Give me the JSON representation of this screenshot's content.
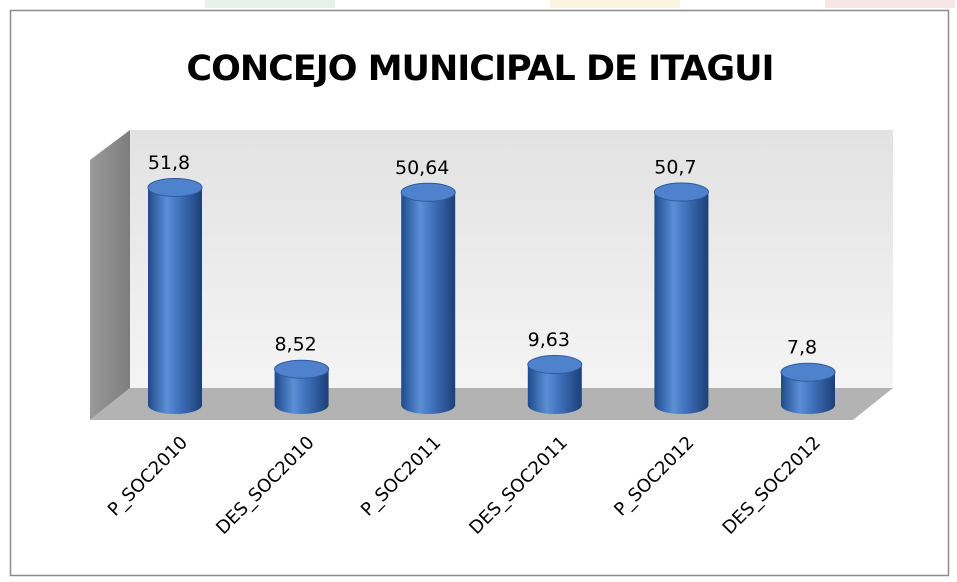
{
  "chart_data": {
    "type": "bar3d-cylinder",
    "title": "CONCEJO MUNICIPAL DE ITAGUI",
    "categories": [
      "P_SOC2010",
      "DES_SOC2010",
      "P_SOC2011",
      "DES_SOC2011",
      "P_SOC2012",
      "DES_SOC2012"
    ],
    "values": [
      51.8,
      8.52,
      50.64,
      9.63,
      50.7,
      7.8
    ],
    "value_labels": [
      "51,8",
      "8,52",
      "50,64",
      "9,63",
      "50,7",
      "7,8"
    ],
    "color": "#3e6fb8"
  }
}
